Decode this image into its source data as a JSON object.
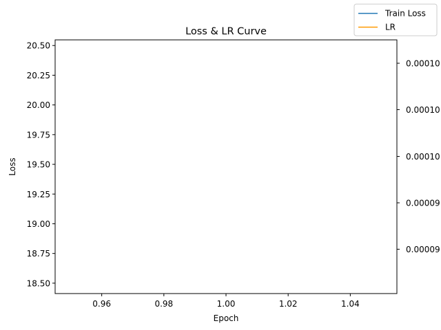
{
  "chart_data": {
    "type": "line",
    "title": "Loss & LR Curve",
    "xlabel": "Epoch",
    "ylabel": "Loss",
    "y2label": "",
    "xlim": [
      0.945,
      1.055
    ],
    "ylim": [
      18.4125,
      20.5475
    ],
    "x_ticks": [
      {
        "value": 0.96,
        "label": "0.96"
      },
      {
        "value": 0.98,
        "label": "0.98"
      },
      {
        "value": 1.0,
        "label": "1.00"
      },
      {
        "value": 1.02,
        "label": "1.02"
      },
      {
        "value": 1.04,
        "label": "1.04"
      }
    ],
    "y_ticks": [
      {
        "value": 18.5,
        "label": "18.50"
      },
      {
        "value": 18.75,
        "label": "18.75"
      },
      {
        "value": 19.0,
        "label": "19.00"
      },
      {
        "value": 19.25,
        "label": "19.25"
      },
      {
        "value": 19.5,
        "label": "19.50"
      },
      {
        "value": 19.75,
        "label": "19.75"
      },
      {
        "value": 20.0,
        "label": "20.00"
      },
      {
        "value": 20.25,
        "label": "20.25"
      },
      {
        "value": 20.5,
        "label": "20.50"
      }
    ],
    "y2_ticks": [
      {
        "label": "0.00010"
      },
      {
        "label": "0.00010"
      },
      {
        "label": "0.00010"
      },
      {
        "label": "0.00009"
      },
      {
        "label": "0.00009"
      }
    ],
    "grid": false,
    "legend_position": "top-right",
    "series": [
      {
        "name": "Train Loss",
        "axis": "left",
        "color": "#1f77b4",
        "x": [],
        "y": []
      },
      {
        "name": "LR",
        "axis": "right",
        "color": "#ff9900",
        "x": [],
        "y": []
      }
    ]
  }
}
